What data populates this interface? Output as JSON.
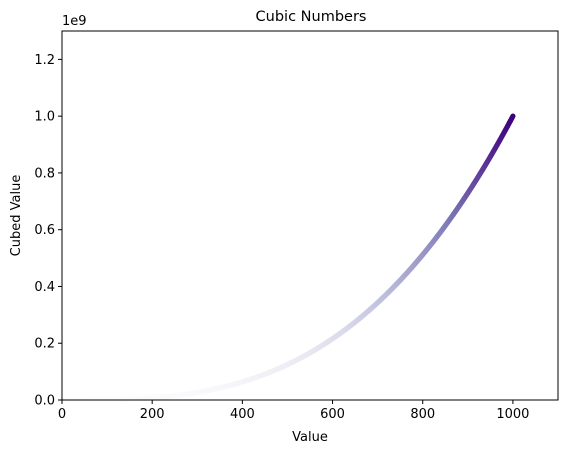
{
  "chart_data": {
    "type": "scatter",
    "title": "Cubic Numbers",
    "xlabel": "Value",
    "ylabel": "Cubed Value",
    "offset_text": "1e9",
    "x_range": [
      1,
      1000
    ],
    "y_formula": "x^3",
    "y_scale_factor": 1000000000,
    "xlim": [
      0,
      1100
    ],
    "ylim": [
      0,
      1.3
    ],
    "x_ticks": [
      0,
      200,
      400,
      600,
      800,
      1000
    ],
    "x_tick_labels": [
      "0",
      "200",
      "400",
      "600",
      "800",
      "1000"
    ],
    "y_ticks": [
      0,
      0.2,
      0.4,
      0.6,
      0.8,
      1.0,
      1.2
    ],
    "y_tick_labels": [
      "0.0",
      "0.2",
      "0.4",
      "0.6",
      "0.8",
      "1.0",
      "1.2"
    ],
    "colormap": "Purples",
    "colormap_stops": [
      "#fcfbfd",
      "#efedf5",
      "#dadaeb",
      "#bcbddc",
      "#9e9ac8",
      "#807dba",
      "#6a51a3",
      "#54278f",
      "#3f007d"
    ],
    "grid": false,
    "legend": "none"
  }
}
